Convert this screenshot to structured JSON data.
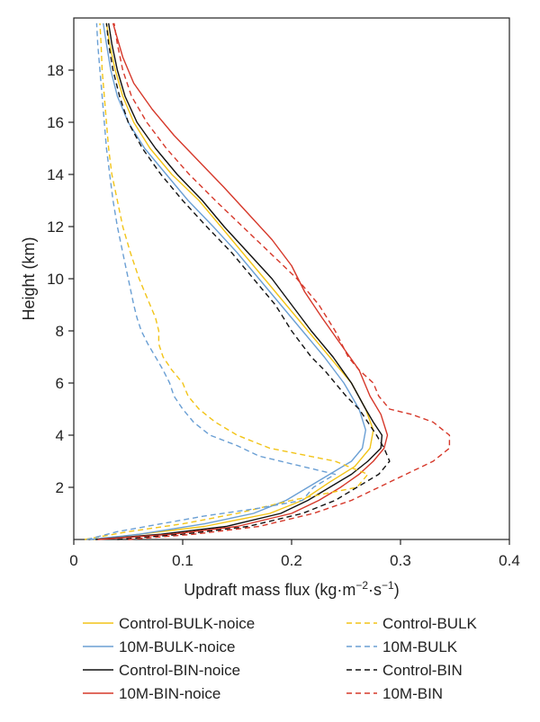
{
  "chart_data": {
    "type": "line",
    "xlabel": "Updraft mass flux (kg·m",
    "xlabel_exp1": "−2",
    "xlabel_mid": "·s",
    "xlabel_exp2": "−1",
    "xlabel_end": ")",
    "ylabel": "Height (km)",
    "xlim": [
      0,
      0.4
    ],
    "ylim": [
      0,
      20
    ],
    "xticks": [
      "0",
      "0.1",
      "0.2",
      "0.3",
      "0.4"
    ],
    "yticks": [
      "2",
      "4",
      "6",
      "8",
      "10",
      "12",
      "14",
      "16",
      "18"
    ],
    "grid": false,
    "legend_position": "bottom",
    "series": [
      {
        "name": "Control-BULK-noice",
        "color": "#f2c418",
        "dash": "solid",
        "points": [
          [
            0.018,
            0
          ],
          [
            0.06,
            0.2
          ],
          [
            0.12,
            0.5
          ],
          [
            0.18,
            1.0
          ],
          [
            0.21,
            1.5
          ],
          [
            0.235,
            2.2
          ],
          [
            0.258,
            2.8
          ],
          [
            0.272,
            3.5
          ],
          [
            0.275,
            4.2
          ],
          [
            0.268,
            5.0
          ],
          [
            0.255,
            6.0
          ],
          [
            0.235,
            7.0
          ],
          [
            0.215,
            8.0
          ],
          [
            0.195,
            9.0
          ],
          [
            0.175,
            10.0
          ],
          [
            0.155,
            11.0
          ],
          [
            0.135,
            12.0
          ],
          [
            0.115,
            13.0
          ],
          [
            0.09,
            14.0
          ],
          [
            0.07,
            15.0
          ],
          [
            0.055,
            16.0
          ],
          [
            0.045,
            17.0
          ],
          [
            0.038,
            18.0
          ],
          [
            0.033,
            19.0
          ],
          [
            0.03,
            19.8
          ]
        ]
      },
      {
        "name": "10M-BULK-noice",
        "color": "#6a9fd4",
        "dash": "solid",
        "points": [
          [
            0.015,
            0
          ],
          [
            0.06,
            0.2
          ],
          [
            0.12,
            0.6
          ],
          [
            0.165,
            1.0
          ],
          [
            0.195,
            1.5
          ],
          [
            0.215,
            2.0
          ],
          [
            0.235,
            2.5
          ],
          [
            0.255,
            3.0
          ],
          [
            0.265,
            3.5
          ],
          [
            0.268,
            4.2
          ],
          [
            0.262,
            5.0
          ],
          [
            0.248,
            6.0
          ],
          [
            0.23,
            7.0
          ],
          [
            0.21,
            8.0
          ],
          [
            0.19,
            9.0
          ],
          [
            0.17,
            10.0
          ],
          [
            0.15,
            11.0
          ],
          [
            0.128,
            12.0
          ],
          [
            0.105,
            13.0
          ],
          [
            0.085,
            14.0
          ],
          [
            0.065,
            15.0
          ],
          [
            0.05,
            16.0
          ],
          [
            0.04,
            17.0
          ],
          [
            0.034,
            18.0
          ],
          [
            0.03,
            19.0
          ],
          [
            0.027,
            19.8
          ]
        ]
      },
      {
        "name": "Control-BIN-noice",
        "color": "#111111",
        "dash": "solid",
        "points": [
          [
            0.02,
            0
          ],
          [
            0.08,
            0.2
          ],
          [
            0.14,
            0.5
          ],
          [
            0.19,
            1.0
          ],
          [
            0.215,
            1.5
          ],
          [
            0.235,
            2.0
          ],
          [
            0.255,
            2.5
          ],
          [
            0.27,
            3.0
          ],
          [
            0.282,
            3.5
          ],
          [
            0.283,
            4.0
          ],
          [
            0.275,
            4.5
          ],
          [
            0.268,
            5.0
          ],
          [
            0.255,
            6.0
          ],
          [
            0.238,
            7.0
          ],
          [
            0.218,
            8.0
          ],
          [
            0.2,
            9.0
          ],
          [
            0.182,
            10.0
          ],
          [
            0.16,
            11.0
          ],
          [
            0.138,
            12.0
          ],
          [
            0.118,
            13.0
          ],
          [
            0.095,
            14.0
          ],
          [
            0.075,
            15.0
          ],
          [
            0.058,
            16.0
          ],
          [
            0.047,
            17.0
          ],
          [
            0.04,
            18.0
          ],
          [
            0.035,
            19.0
          ],
          [
            0.032,
            19.8
          ]
        ]
      },
      {
        "name": "10M-BIN-noice",
        "color": "#d6382a",
        "dash": "solid",
        "points": [
          [
            0.022,
            0
          ],
          [
            0.09,
            0.2
          ],
          [
            0.15,
            0.5
          ],
          [
            0.2,
            1.0
          ],
          [
            0.225,
            1.5
          ],
          [
            0.245,
            2.0
          ],
          [
            0.262,
            2.5
          ],
          [
            0.275,
            3.0
          ],
          [
            0.285,
            3.5
          ],
          [
            0.288,
            4.0
          ],
          [
            0.282,
            4.8
          ],
          [
            0.272,
            5.5
          ],
          [
            0.262,
            6.5
          ],
          [
            0.245,
            7.5
          ],
          [
            0.228,
            8.5
          ],
          [
            0.212,
            9.5
          ],
          [
            0.2,
            10.5
          ],
          [
            0.182,
            11.5
          ],
          [
            0.16,
            12.5
          ],
          [
            0.138,
            13.5
          ],
          [
            0.115,
            14.5
          ],
          [
            0.092,
            15.5
          ],
          [
            0.072,
            16.5
          ],
          [
            0.055,
            17.5
          ],
          [
            0.045,
            18.5
          ],
          [
            0.038,
            19.5
          ],
          [
            0.036,
            19.8
          ]
        ]
      },
      {
        "name": "Control-BULK",
        "color": "#f2c418",
        "dash": "dashed",
        "points": [
          [
            0.01,
            0
          ],
          [
            0.05,
            0.3
          ],
          [
            0.1,
            0.6
          ],
          [
            0.15,
            1.0
          ],
          [
            0.2,
            1.5
          ],
          [
            0.26,
            2.0
          ],
          [
            0.27,
            2.5
          ],
          [
            0.24,
            3.0
          ],
          [
            0.18,
            3.5
          ],
          [
            0.15,
            4.0
          ],
          [
            0.13,
            4.5
          ],
          [
            0.115,
            5.0
          ],
          [
            0.105,
            5.5
          ],
          [
            0.1,
            6.0
          ],
          [
            0.09,
            6.5
          ],
          [
            0.082,
            7.0
          ],
          [
            0.078,
            7.5
          ],
          [
            0.078,
            8.0
          ],
          [
            0.075,
            8.5
          ],
          [
            0.07,
            9.0
          ],
          [
            0.06,
            10.0
          ],
          [
            0.052,
            11.0
          ],
          [
            0.045,
            12.0
          ],
          [
            0.04,
            13.0
          ],
          [
            0.035,
            14.0
          ],
          [
            0.032,
            15.0
          ],
          [
            0.03,
            16.0
          ],
          [
            0.028,
            17.0
          ],
          [
            0.026,
            18.0
          ],
          [
            0.025,
            19.0
          ],
          [
            0.024,
            19.8
          ]
        ]
      },
      {
        "name": "10M-BULK",
        "color": "#6a9fd4",
        "dash": "dashed",
        "points": [
          [
            0.012,
            0
          ],
          [
            0.04,
            0.3
          ],
          [
            0.08,
            0.6
          ],
          [
            0.12,
            0.9
          ],
          [
            0.17,
            1.2
          ],
          [
            0.21,
            1.5
          ],
          [
            0.22,
            2.0
          ],
          [
            0.24,
            2.5
          ],
          [
            0.2,
            2.9
          ],
          [
            0.17,
            3.2
          ],
          [
            0.15,
            3.6
          ],
          [
            0.125,
            4.0
          ],
          [
            0.11,
            4.5
          ],
          [
            0.1,
            5.0
          ],
          [
            0.092,
            5.5
          ],
          [
            0.088,
            6.0
          ],
          [
            0.082,
            6.5
          ],
          [
            0.075,
            7.0
          ],
          [
            0.068,
            7.5
          ],
          [
            0.062,
            8.0
          ],
          [
            0.058,
            8.5
          ],
          [
            0.055,
            9.0
          ],
          [
            0.05,
            10.0
          ],
          [
            0.045,
            11.0
          ],
          [
            0.04,
            12.0
          ],
          [
            0.036,
            13.0
          ],
          [
            0.033,
            14.0
          ],
          [
            0.03,
            15.0
          ],
          [
            0.028,
            16.0
          ],
          [
            0.026,
            17.0
          ],
          [
            0.024,
            18.0
          ],
          [
            0.022,
            19.0
          ],
          [
            0.021,
            19.8
          ]
        ]
      },
      {
        "name": "Control-BIN",
        "color": "#111111",
        "dash": "dashed",
        "points": [
          [
            0.04,
            0
          ],
          [
            0.1,
            0.2
          ],
          [
            0.16,
            0.5
          ],
          [
            0.21,
            1.0
          ],
          [
            0.24,
            1.5
          ],
          [
            0.26,
            2.0
          ],
          [
            0.28,
            2.5
          ],
          [
            0.29,
            3.0
          ],
          [
            0.285,
            3.5
          ],
          [
            0.278,
            4.0
          ],
          [
            0.27,
            4.5
          ],
          [
            0.262,
            5.0
          ],
          [
            0.25,
            5.5
          ],
          [
            0.24,
            6.0
          ],
          [
            0.23,
            6.5
          ],
          [
            0.218,
            7.0
          ],
          [
            0.2,
            8.0
          ],
          [
            0.185,
            9.0
          ],
          [
            0.165,
            10.0
          ],
          [
            0.145,
            11.0
          ],
          [
            0.122,
            12.0
          ],
          [
            0.1,
            13.0
          ],
          [
            0.08,
            14.0
          ],
          [
            0.063,
            15.0
          ],
          [
            0.05,
            16.0
          ],
          [
            0.042,
            17.0
          ],
          [
            0.036,
            18.0
          ],
          [
            0.032,
            19.0
          ],
          [
            0.03,
            19.8
          ]
        ]
      },
      {
        "name": "10M-BIN",
        "color": "#d6382a",
        "dash": "dashed",
        "points": [
          [
            0.05,
            0
          ],
          [
            0.11,
            0.2
          ],
          [
            0.17,
            0.5
          ],
          [
            0.22,
            1.0
          ],
          [
            0.255,
            1.5
          ],
          [
            0.28,
            2.0
          ],
          [
            0.305,
            2.5
          ],
          [
            0.33,
            3.0
          ],
          [
            0.345,
            3.5
          ],
          [
            0.345,
            4.0
          ],
          [
            0.33,
            4.5
          ],
          [
            0.31,
            4.8
          ],
          [
            0.29,
            5.0
          ],
          [
            0.28,
            5.5
          ],
          [
            0.275,
            6.0
          ],
          [
            0.262,
            6.5
          ],
          [
            0.252,
            7.0
          ],
          [
            0.24,
            8.0
          ],
          [
            0.225,
            9.0
          ],
          [
            0.205,
            10.0
          ],
          [
            0.18,
            11.0
          ],
          [
            0.155,
            12.0
          ],
          [
            0.13,
            13.0
          ],
          [
            0.106,
            14.0
          ],
          [
            0.085,
            15.0
          ],
          [
            0.067,
            16.0
          ],
          [
            0.053,
            17.0
          ],
          [
            0.045,
            18.0
          ],
          [
            0.04,
            19.0
          ],
          [
            0.037,
            19.8
          ]
        ]
      }
    ]
  }
}
